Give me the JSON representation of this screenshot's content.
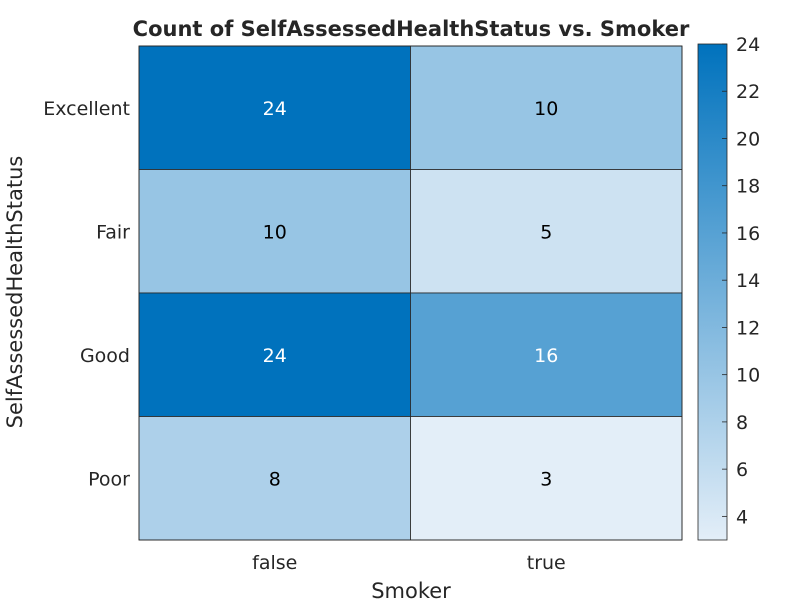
{
  "chart_data": {
    "type": "heatmap",
    "title": "Count of SelfAssessedHealthStatus vs. Smoker",
    "xlabel": "Smoker",
    "ylabel": "SelfAssessedHealthStatus",
    "x_categories": [
      "false",
      "true"
    ],
    "y_categories": [
      "Excellent",
      "Fair",
      "Good",
      "Poor"
    ],
    "values": [
      [
        24,
        10
      ],
      [
        10,
        5
      ],
      [
        24,
        16
      ],
      [
        8,
        3
      ]
    ],
    "colorbar": {
      "range": [
        3,
        24
      ],
      "ticks": [
        4,
        6,
        8,
        10,
        12,
        14,
        16,
        18,
        20,
        22,
        24
      ],
      "colors": {
        "low": "#e3eef8",
        "high": "#0072bd"
      }
    },
    "label_colors": {
      "dark_text": "#000000",
      "light_text": "#ffffff"
    },
    "grid": true,
    "legend": "colorbar-right"
  }
}
